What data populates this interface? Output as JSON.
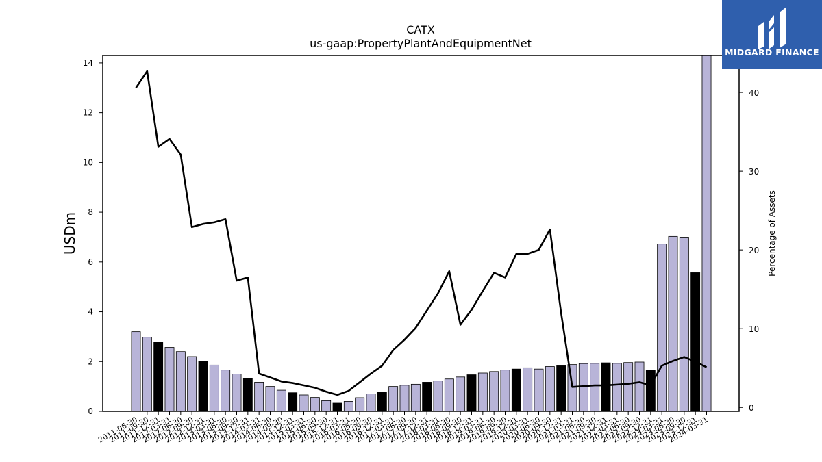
{
  "logo": {
    "text": "MIDGARD FINANCE",
    "background": "#2f5fad",
    "icon": "midgard-logo-icon"
  },
  "chart_data": {
    "type": "bar",
    "title": "CATX",
    "subtitle": "us-gaap:PropertyPlantAndEquipmentNet",
    "ylabel": "USDm",
    "ylabel_right": "Percentage of Assets",
    "ylim": [
      0,
      14.3
    ],
    "ylim_right": [
      -0.5,
      44.7
    ],
    "yticks": [
      0,
      2,
      4,
      6,
      8,
      10,
      12,
      14
    ],
    "yticks_right": [
      0,
      10,
      20,
      30,
      40
    ],
    "grid": false,
    "categories": [
      "2011-06-30",
      "2011-09-30",
      "2011-12-31",
      "2012-03-31",
      "2012-06-30",
      "2012-09-30",
      "2012-12-31",
      "2013-03-31",
      "2013-06-30",
      "2013-09-30",
      "2013-12-31",
      "2014-03-31",
      "2014-06-30",
      "2014-09-30",
      "2014-12-31",
      "2015-03-31",
      "2015-06-30",
      "2015-09-30",
      "2015-12-31",
      "2016-03-31",
      "2016-06-30",
      "2016-09-30",
      "2016-12-31",
      "2017-03-31",
      "2017-06-30",
      "2017-09-30",
      "2017-12-31",
      "2018-03-31",
      "2018-06-30",
      "2018-09-30",
      "2018-12-31",
      "2019-03-31",
      "2019-06-30",
      "2019-09-30",
      "2019-12-31",
      "2020-03-31",
      "2020-06-30",
      "2020-09-30",
      "2020-12-31",
      "2021-03-31",
      "2021-06-30",
      "2021-09-30",
      "2021-12-31",
      "2022-03-31",
      "2022-06-30",
      "2022-09-30",
      "2022-12-31",
      "2023-03-31",
      "2023-06-30",
      "2023-09-30",
      "2023-12-31",
      "2024-03-31"
    ],
    "xtick_labels": [
      "2011-06-30",
      "2011-09-30",
      "2011-12-31",
      "2012-03-31",
      "2012-06-30",
      "2012-09-30",
      "2012-12-31",
      "2013-03-31",
      "2013-06-30",
      "2013-09-30",
      "2013-12-31",
      "2014-03-31",
      "2014-06-30",
      "2014-09-30",
      "2014-12-31",
      "2015-03-31",
      "2015-06-30",
      "2015-09-30",
      "2015-12-31",
      "2016-03-31",
      "2016-06-30",
      "2016-09-30",
      "2016-12-31",
      "2017-03-31",
      "2017-06-30",
      "2017-09-30",
      "2017-12-31",
      "2018-03-31",
      "2018-06-30",
      "2018-09-30",
      "2018-12-31",
      "2019-03-31",
      "2019-06-30",
      "2019-09-30",
      "2019-12-31",
      "2020-03-31",
      "2020-06-30",
      "2020-09-30",
      "2020-12-31",
      "2021-03-31",
      "2021-06-30",
      "2021-09-30",
      "2021-12-31",
      "2022-03-31",
      "2022-06-30",
      "2022-09-30",
      "2022-12-31",
      "2023-03-31",
      "2023-06-30",
      "2023-09-30",
      "2023-12-31",
      "2024-03-31"
    ],
    "series": [
      {
        "type": "bar",
        "axis": "left",
        "values": [
          3.2,
          2.98,
          2.78,
          2.57,
          2.4,
          2.2,
          2.02,
          1.86,
          1.66,
          1.5,
          1.33,
          1.17,
          1.0,
          0.85,
          0.75,
          0.66,
          0.56,
          0.43,
          0.33,
          0.4,
          0.55,
          0.7,
          0.78,
          1.0,
          1.05,
          1.09,
          1.17,
          1.22,
          1.3,
          1.38,
          1.47,
          1.54,
          1.6,
          1.66,
          1.7,
          1.75,
          1.7,
          1.8,
          1.83,
          1.88,
          1.92,
          1.93,
          1.95,
          1.93,
          1.96,
          1.98,
          1.66,
          6.72,
          7.03,
          7.0,
          5.57,
          14.3
        ],
        "colors": [
          "#b8b4d8",
          "#b8b4d8",
          "#000000",
          "#b8b4d8",
          "#b8b4d8",
          "#b8b4d8",
          "#000000",
          "#b8b4d8",
          "#b8b4d8",
          "#b8b4d8",
          "#000000",
          "#b8b4d8",
          "#b8b4d8",
          "#b8b4d8",
          "#000000",
          "#b8b4d8",
          "#b8b4d8",
          "#b8b4d8",
          "#000000",
          "#b8b4d8",
          "#b8b4d8",
          "#b8b4d8",
          "#000000",
          "#b8b4d8",
          "#b8b4d8",
          "#b8b4d8",
          "#000000",
          "#b8b4d8",
          "#b8b4d8",
          "#b8b4d8",
          "#000000",
          "#b8b4d8",
          "#b8b4d8",
          "#b8b4d8",
          "#000000",
          "#b8b4d8",
          "#b8b4d8",
          "#b8b4d8",
          "#000000",
          "#b8b4d8",
          "#b8b4d8",
          "#b8b4d8",
          "#000000",
          "#b8b4d8",
          "#b8b4d8",
          "#b8b4d8",
          "#000000",
          "#b8b4d8",
          "#b8b4d8",
          "#b8b4d8",
          "#000000",
          "#b8b4d8"
        ]
      },
      {
        "type": "line",
        "axis": "right",
        "color": "#000000",
        "values": [
          40.6,
          42.7,
          33.1,
          34.1,
          32.1,
          22.9,
          23.3,
          23.5,
          23.9,
          16.1,
          16.5,
          4.3,
          3.8,
          3.3,
          3.1,
          2.8,
          2.5,
          2.0,
          1.6,
          2.1,
          3.2,
          4.3,
          5.3,
          7.3,
          8.6,
          10.1,
          12.3,
          14.5,
          17.3,
          10.5,
          12.4,
          14.8,
          17.1,
          16.5,
          19.5,
          19.5,
          20.0,
          22.6,
          12.0,
          2.6,
          2.7,
          2.8,
          2.8,
          2.9,
          3.0,
          3.2,
          2.8,
          5.3,
          5.9,
          6.4,
          5.8,
          5.1
        ]
      }
    ]
  }
}
